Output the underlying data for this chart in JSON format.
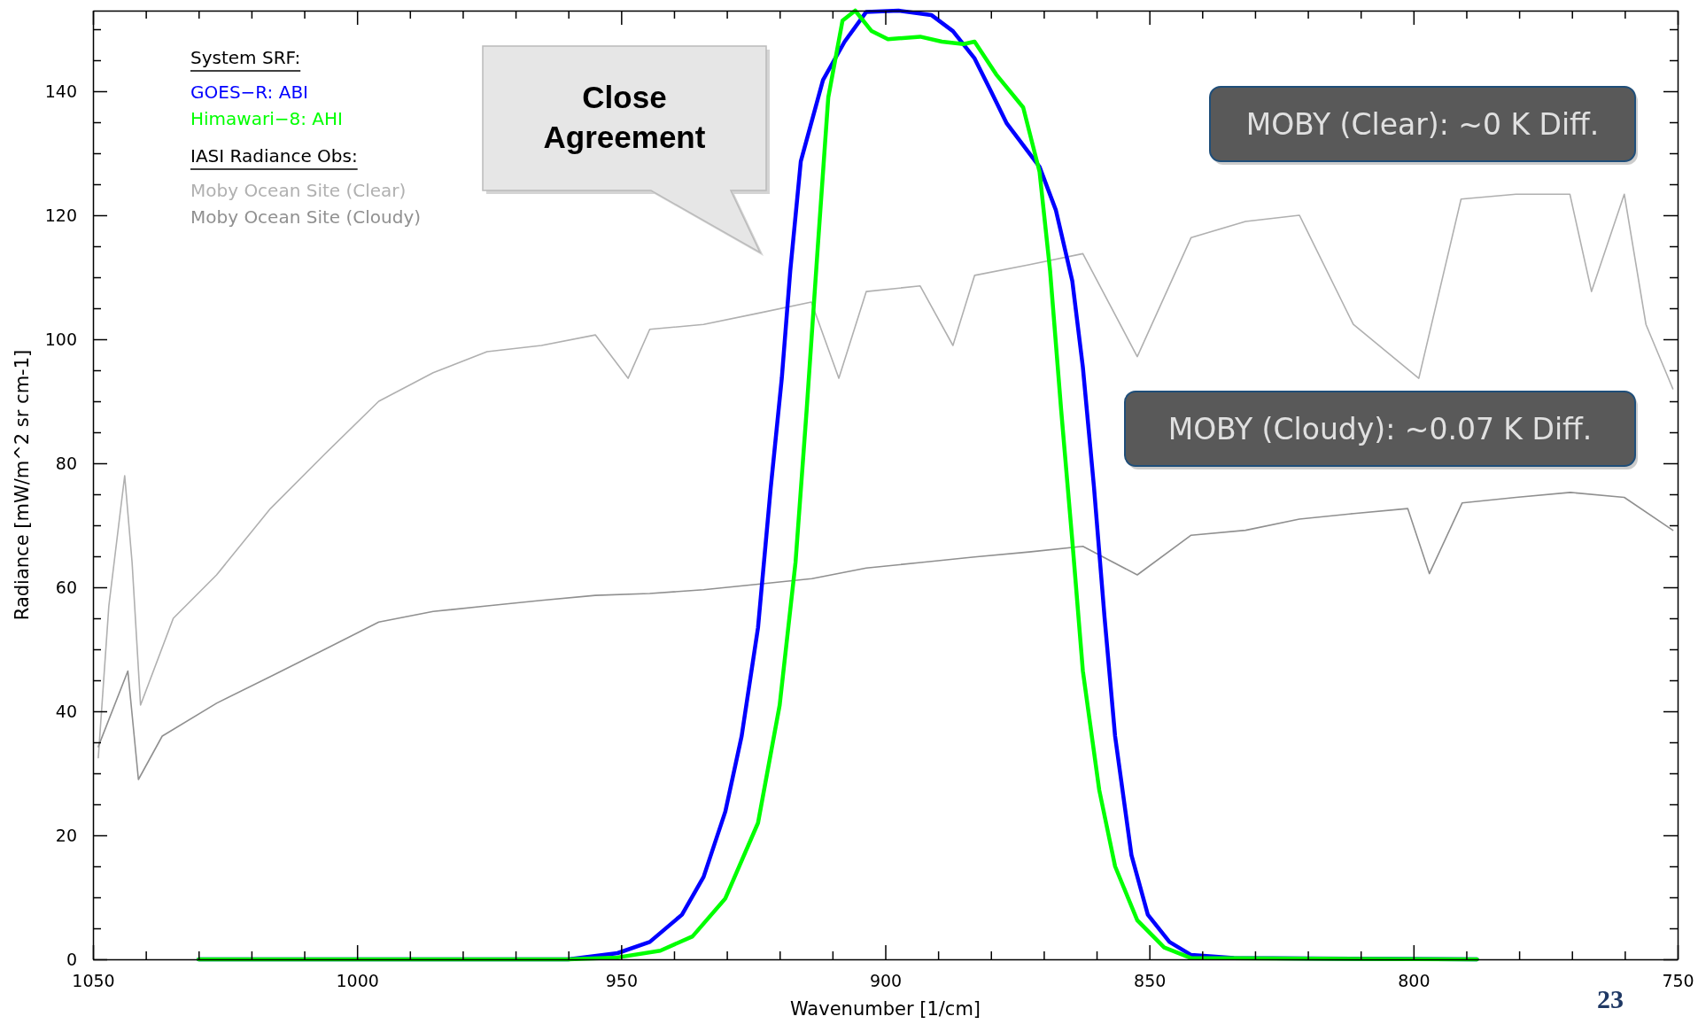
{
  "chart_data": {
    "type": "line",
    "xlabel": "Wavenumber [1/cm]",
    "ylabel": "Radiance [mW/m^2 sr cm-1]",
    "legend_title": "System SRF:",
    "legend": "top left",
    "xlim": [
      1050,
      750
    ],
    "ylim": [
      0,
      153
    ],
    "xticks": [
      1050,
      {
        "value": 1040,
        "label": null
      },
      {
        "value": 1030,
        "label": null
      },
      {
        "value": 1020,
        "label": null
      },
      {
        "value": 1010,
        "label": null
      },
      1000,
      {
        "value": 990,
        "label": null
      },
      {
        "value": 980,
        "label": null
      },
      {
        "value": 970,
        "label": null
      },
      {
        "value": 960,
        "label": null
      },
      950,
      {
        "value": 940,
        "label": null
      },
      {
        "value": 930,
        "label": null
      },
      {
        "value": 920,
        "label": null
      },
      {
        "value": 910,
        "label": null
      },
      900,
      {
        "value": 890,
        "label": null
      },
      {
        "value": 880,
        "label": null
      },
      {
        "value": 870,
        "label": null
      },
      {
        "value": 860,
        "label": null
      },
      850,
      {
        "value": 840,
        "label": null
      },
      {
        "value": 830,
        "label": null
      },
      {
        "value": 820,
        "label": null
      },
      {
        "value": 810,
        "label": null
      },
      800,
      {
        "value": 790,
        "label": null
      },
      {
        "value": 780,
        "label": null
      },
      {
        "value": 770,
        "label": null
      },
      {
        "value": 760,
        "label": null
      },
      750
    ],
    "yticks": [
      0,
      {
        "value": 5,
        "label": null
      },
      {
        "value": 10,
        "label": null
      },
      {
        "value": 15,
        "label": null
      },
      20,
      {
        "value": 25,
        "label": null
      },
      {
        "value": 30,
        "label": null
      },
      {
        "value": 35,
        "label": null
      },
      40,
      {
        "value": 45,
        "label": null
      },
      {
        "value": 50,
        "label": null
      },
      {
        "value": 55,
        "label": null
      },
      60,
      {
        "value": 65,
        "label": null
      },
      {
        "value": 70,
        "label": null
      },
      {
        "value": 75,
        "label": null
      },
      80,
      {
        "value": 85,
        "label": null
      },
      {
        "value": 90,
        "label": null
      },
      {
        "value": 95,
        "label": null
      },
      100,
      {
        "value": 105,
        "label": null
      },
      {
        "value": 110,
        "label": null
      },
      {
        "value": 115,
        "label": null
      },
      120,
      {
        "value": 125,
        "label": null
      },
      {
        "value": 130,
        "label": null
      },
      {
        "value": 135,
        "label": null
      },
      140,
      {
        "value": 145,
        "label": null
      },
      {
        "value": 150,
        "label": null
      }
    ],
    "series": [
      {
        "name": "Moby Ocean Site (Clear)",
        "color": "#b0b0b0",
        "x": [
          1049,
          1047,
          1044,
          1042.6,
          1041,
          1034.8,
          1026.6,
          1016.4,
          1006.1,
          995.9,
          985.6,
          975.4,
          965.1,
          954.9,
          948.7,
          944.6,
          934.4,
          924.1,
          914,
          908.8,
          903.6,
          893.4,
          887.2,
          883.1,
          872.9,
          862.6,
          852.3,
          842.1,
          831.8,
          821.6,
          811.4,
          799,
          791,
          780.6,
          770.4,
          766.3,
          760.1,
          756,
          750.9
        ],
        "values": [
          32.5,
          57,
          78,
          64,
          41,
          55,
          62,
          72.7,
          81.5,
          90,
          94.6,
          98,
          99,
          100.7,
          93.7,
          101.6,
          102.4,
          104.2,
          106,
          93.7,
          107.7,
          108.6,
          99,
          110.3,
          112,
          113.8,
          97.2,
          116.4,
          119,
          120,
          102.4,
          93.7,
          122.6,
          123.4,
          123.4,
          107.7,
          123.4,
          102.4,
          92
        ]
      },
      {
        "name": "Moby Ocean Site (Cloudy)",
        "color": "#909090",
        "x": [
          1049,
          1043.4,
          1041.4,
          1036.9,
          1026.6,
          1016.4,
          1006.1,
          995.9,
          985.6,
          975.4,
          965.1,
          954.9,
          944.6,
          934.4,
          924.1,
          913.9,
          903.6,
          893.3,
          883.1,
          872.8,
          862.6,
          852.3,
          842.1,
          831.8,
          821.6,
          811.3,
          801.1,
          797,
          790.8,
          780.6,
          770.3,
          760.1,
          750.9
        ],
        "values": [
          34.3,
          46.5,
          29,
          36,
          41.3,
          45.6,
          50,
          54.4,
          56.1,
          57,
          57.9,
          58.7,
          59,
          59.6,
          60.5,
          61.4,
          63.1,
          64,
          64.9,
          65.7,
          66.6,
          62,
          68.4,
          69.2,
          71,
          71.9,
          72.7,
          62.2,
          73.6,
          74.5,
          75.3,
          74.5,
          69.2
        ]
      },
      {
        "name": "GOES−R: ABI",
        "color": "#0000ff",
        "x": [
          1030,
          960,
          950.7,
          944.6,
          938.5,
          934.4,
          930.3,
          927.2,
          924.1,
          921.7,
          919.6,
          918,
          916,
          911.8,
          907.7,
          903.6,
          897.5,
          891.3,
          887.2,
          883.1,
          880,
          877,
          870.8,
          867.7,
          864.6,
          862.6,
          860.5,
          858.5,
          856.5,
          853.4,
          850.3,
          846.2,
          842.1,
          834,
          788
        ],
        "values": [
          0,
          0,
          1,
          2.8,
          7.2,
          13.3,
          23.8,
          36,
          53.5,
          76,
          93.7,
          111,
          128.7,
          141.8,
          148,
          152.8,
          153,
          152.3,
          149.7,
          145.3,
          140,
          134.8,
          127.8,
          120.8,
          109.4,
          95.5,
          76.2,
          55.2,
          36,
          16.8,
          7.2,
          2.8,
          0.7,
          0.2,
          0
        ]
      },
      {
        "name": "Himawari−8: AHI",
        "color": "#00ff00",
        "x": [
          1030,
          960,
          950.7,
          942.6,
          936.5,
          930.3,
          924.1,
          920,
          917,
          914.9,
          912.8,
          910.8,
          908.1,
          905.7,
          902.6,
          899.5,
          893.4,
          889.3,
          885.2,
          883.1,
          879,
          873.9,
          870.8,
          868.8,
          866.7,
          864.6,
          862.6,
          859.5,
          856.5,
          852.3,
          847.2,
          842.1,
          788
        ],
        "values": [
          0,
          0,
          0.3,
          1.4,
          3.7,
          9.8,
          22,
          41,
          64,
          88.5,
          114.7,
          139,
          151.4,
          153,
          149.7,
          148.4,
          148.8,
          148,
          147.6,
          148,
          142.7,
          137.4,
          127,
          111,
          88.5,
          67.5,
          46.5,
          27.3,
          15,
          6.3,
          1.9,
          0.2,
          0
        ]
      }
    ],
    "annotations": [
      "IASI Radiance Obs:",
      "Close Agreement",
      "MOBY (Clear): ~0 K Diff.",
      "MOBY (Cloudy): ~0.07 K Diff.",
      "23"
    ]
  }
}
